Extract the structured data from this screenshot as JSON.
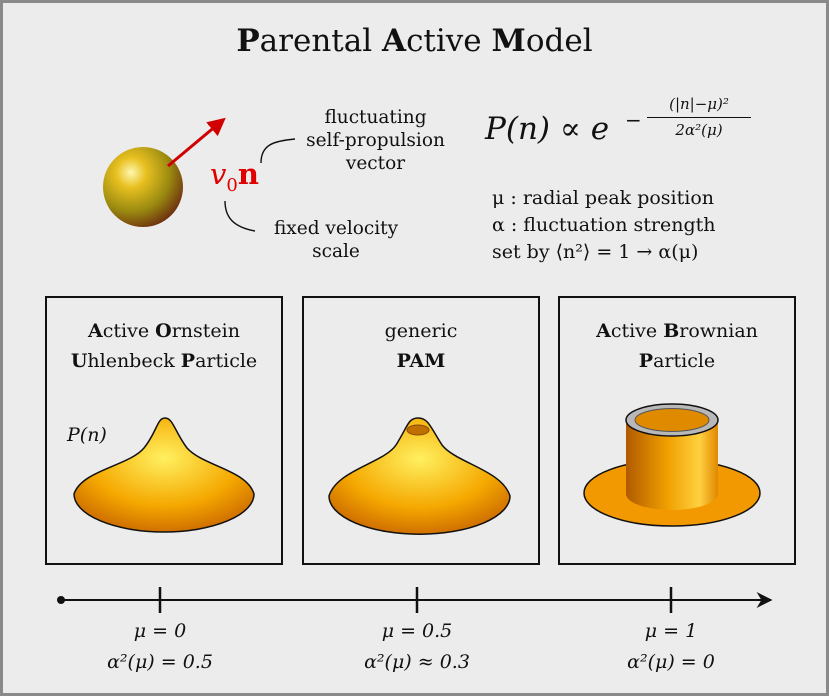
{
  "title": {
    "b1": "P",
    "r1": "arental ",
    "b2": "A",
    "r2": "ctive ",
    "b3": "M",
    "r3": "odel"
  },
  "particle": {
    "velocity_symbol": "v",
    "velocity_subscript": "0",
    "vector_symbol": "n",
    "label_fluctuating": [
      "fluctuating",
      "self-propulsion",
      "vector"
    ],
    "label_fixed": [
      "fixed velocity",
      "scale"
    ]
  },
  "formula": {
    "lhs": "P(n) ∝ e",
    "exponent_numerator": "(|n|−μ)²",
    "exponent_denominator": "2α²(μ)",
    "exponent_sign": "−"
  },
  "definitions": [
    "μ : radial peak position",
    "α : fluctuation strength",
    "set by ⟨n²⟩ = 1 → α(μ)"
  ],
  "panels": [
    {
      "title_lines": [
        [
          "A",
          "ctive ",
          "O",
          "rnstein"
        ],
        [
          "U",
          "hlenbeck ",
          "P",
          "article"
        ]
      ],
      "surface": "cone",
      "ylabel": "P(n)"
    },
    {
      "title_lines": [
        [
          "",
          "generic",
          "",
          ""
        ],
        [
          "PAM",
          "",
          "",
          ""
        ]
      ],
      "surface": "crater"
    },
    {
      "title_lines": [
        [
          "A",
          "ctive ",
          "B",
          "rownian"
        ],
        [
          "P",
          "article",
          "",
          ""
        ]
      ],
      "surface": "tube"
    }
  ],
  "axis": {
    "ticks": [
      {
        "mu": "μ = 0",
        "alpha": "α²(μ) = 0.5"
      },
      {
        "mu": "μ = 0.5",
        "alpha": "α²(μ) ≈ 0.3"
      },
      {
        "mu": "μ = 1",
        "alpha": "α²(μ) = 0"
      }
    ]
  },
  "colors": {
    "accent": "#e00000",
    "surface": "#f2a000",
    "background": "#ececec"
  }
}
